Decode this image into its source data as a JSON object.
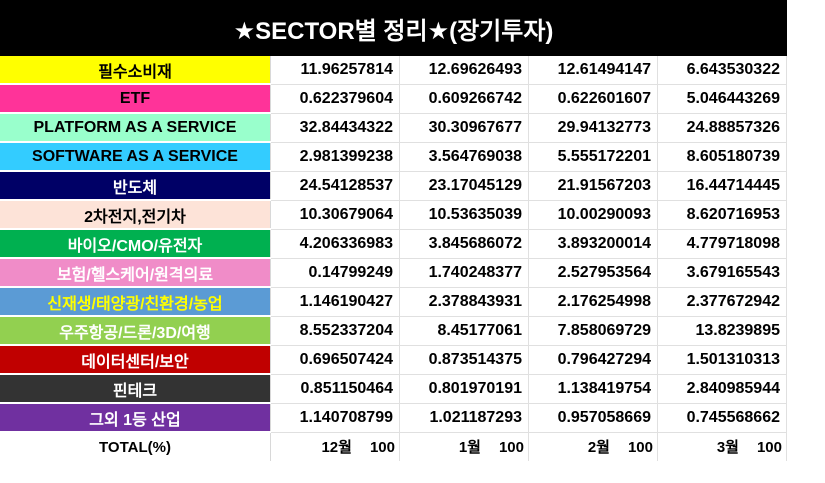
{
  "title": "★SECTOR별 정리★(장기투자)",
  "rows": [
    {
      "label": "필수소비재",
      "bg": "#ffff00",
      "fg": "#000000",
      "values": [
        "11.96257814",
        "12.69626493",
        "12.61494147",
        "6.643530322"
      ]
    },
    {
      "label": "ETF",
      "bg": "#ff3399",
      "fg": "#000000",
      "values": [
        "0.622379604",
        "0.609266742",
        "0.622601607",
        "5.046443269"
      ]
    },
    {
      "label": "PLATFORM AS A SERVICE",
      "bg": "#99ffcc",
      "fg": "#000000",
      "values": [
        "32.84434322",
        "30.30967677",
        "29.94132773",
        "24.88857326"
      ]
    },
    {
      "label": "SOFTWARE AS A SERVICE",
      "bg": "#33ccff",
      "fg": "#000000",
      "values": [
        "2.981399238",
        "3.564769038",
        "5.555172201",
        "8.605180739"
      ]
    },
    {
      "label": "반도체",
      "bg": "#000066",
      "fg": "#ffffff",
      "values": [
        "24.54128537",
        "23.17045129",
        "21.91567203",
        "16.44714445"
      ]
    },
    {
      "label": "2차전지,전기차",
      "bg": "#fde3d8",
      "fg": "#000000",
      "values": [
        "10.30679064",
        "10.53635039",
        "10.00290093",
        "8.620716953"
      ]
    },
    {
      "label": "바이오/CMO/유전자",
      "bg": "#00b050",
      "fg": "#ffffff",
      "values": [
        "4.206336983",
        "3.845686072",
        "3.893200014",
        "4.779718098"
      ]
    },
    {
      "label": "보험/헬스케어/원격의료",
      "bg": "#f08cc8",
      "fg": "#ffffff",
      "values": [
        "0.14799249",
        "1.740248377",
        "2.527953564",
        "3.679165543"
      ]
    },
    {
      "label": "신재생/태양광/친환경/농업",
      "bg": "#5b9bd5",
      "fg": "#ffff00",
      "values": [
        "1.146190427",
        "2.378843931",
        "2.176254998",
        "2.377672942"
      ]
    },
    {
      "label": "우주항공/드론/3D/여행",
      "bg": "#92d050",
      "fg": "#ffffff",
      "values": [
        "8.552337204",
        "8.45177061",
        "7.858069729",
        "13.8239895"
      ]
    },
    {
      "label": "데이터센터/보안",
      "bg": "#c00000",
      "fg": "#ffffff",
      "values": [
        "0.696507424",
        "0.873514375",
        "0.796427294",
        "1.501310313"
      ]
    },
    {
      "label": "핀테크",
      "bg": "#333333",
      "fg": "#ffffff",
      "values": [
        "0.851150464",
        "0.801970191",
        "1.138419754",
        "2.840985944"
      ]
    },
    {
      "label": "그외 1등 산업",
      "bg": "#7030a0",
      "fg": "#ffffff",
      "values": [
        "1.140708799",
        "1.021187293",
        "0.957058669",
        "0.745568662"
      ]
    }
  ],
  "total": {
    "label": "TOTAL(%)",
    "columns": [
      {
        "month": "12월",
        "value": "100"
      },
      {
        "month": "1월",
        "value": "100"
      },
      {
        "month": "2월",
        "value": "100"
      },
      {
        "month": "3월",
        "value": "100"
      }
    ]
  }
}
